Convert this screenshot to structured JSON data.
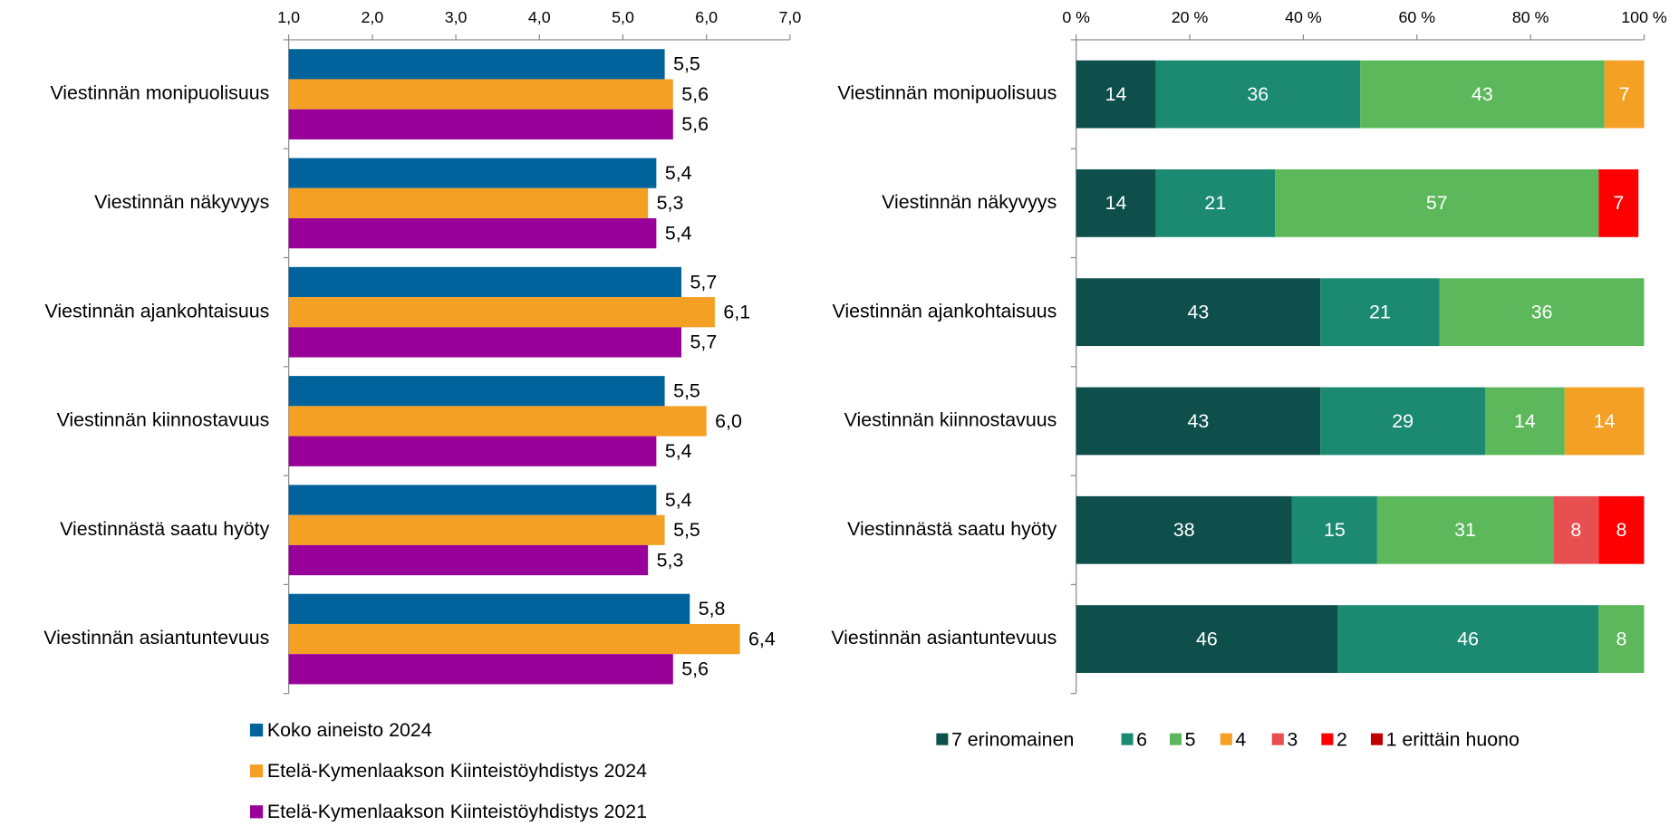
{
  "chart_data": [
    {
      "type": "bar",
      "orientation": "horizontal",
      "categories": [
        "Viestinnän monipuolisuus",
        "Viestinnän näkyvyys",
        "Viestinnän ajankohtaisuus",
        "Viestinnän kiinnostavuus",
        "Viestinnästä saatu hyöty",
        "Viestinnän asiantuntevuus"
      ],
      "series": [
        {
          "name": "Koko aineisto 2024",
          "color": "#00639c",
          "values": [
            5.5,
            5.4,
            5.7,
            5.5,
            5.4,
            5.8
          ],
          "value_labels": [
            "5,5",
            "5,4",
            "5,7",
            "5,5",
            "5,4",
            "5,8"
          ]
        },
        {
          "name": "Etelä-Kymenlaakson Kiinteistöyhdistys 2024",
          "color": "#f4a025",
          "values": [
            5.6,
            5.3,
            6.1,
            6.0,
            5.5,
            6.4
          ],
          "value_labels": [
            "5,6",
            "5,3",
            "6,1",
            "6,0",
            "5,5",
            "6,4"
          ]
        },
        {
          "name": "Etelä-Kymenlaakson Kiinteistöyhdistys 2021",
          "color": "#990099",
          "values": [
            5.6,
            5.4,
            5.7,
            5.4,
            5.3,
            5.6
          ],
          "value_labels": [
            "5,6",
            "5,4",
            "5,7",
            "5,4",
            "5,3",
            "5,6"
          ]
        }
      ],
      "xlim": [
        1,
        7
      ],
      "xticks": [
        {
          "value": 1,
          "label": "1,0"
        },
        {
          "value": 2,
          "label": "2,0"
        },
        {
          "value": 3,
          "label": "3,0"
        },
        {
          "value": 4,
          "label": "4,0"
        },
        {
          "value": 5,
          "label": "5,0"
        },
        {
          "value": 6,
          "label": "6,0"
        },
        {
          "value": 7,
          "label": "7,0"
        }
      ],
      "legend": "bottom"
    },
    {
      "type": "stacked_bar",
      "orientation": "horizontal",
      "categories": [
        "Viestinnän monipuolisuus",
        "Viestinnän näkyvyys",
        "Viestinnän ajankohtaisuus",
        "Viestinnän kiinnostavuus",
        "Viestinnästä saatu hyöty",
        "Viestinnän asiantuntevuus"
      ],
      "series": [
        {
          "name": "7 erinomainen",
          "color": "#0e4f4c",
          "values": [
            14,
            14,
            43,
            43,
            38,
            46
          ]
        },
        {
          "name": "6",
          "color": "#1b8a71",
          "values": [
            36,
            21,
            21,
            29,
            15,
            46
          ]
        },
        {
          "name": "5",
          "color": "#5cb85a",
          "values": [
            43,
            57,
            36,
            14,
            31,
            8
          ]
        },
        {
          "name": "4",
          "color": "#f4a025",
          "values": [
            7,
            null,
            null,
            14,
            null,
            null
          ]
        },
        {
          "name": "3",
          "color": "#e84f50",
          "values": [
            null,
            null,
            null,
            null,
            8,
            null
          ]
        },
        {
          "name": "2",
          "color": "#ff0000",
          "values": [
            null,
            7,
            null,
            null,
            8,
            null
          ]
        },
        {
          "name": "1 erittäin huono",
          "color": "#c00000",
          "values": [
            null,
            null,
            null,
            null,
            null,
            null
          ]
        }
      ],
      "xlim": [
        0,
        100
      ],
      "xticks": [
        {
          "value": 0,
          "label": "0 %"
        },
        {
          "value": 20,
          "label": "20 %"
        },
        {
          "value": 40,
          "label": "40 %"
        },
        {
          "value": 60,
          "label": "60 %"
        },
        {
          "value": 80,
          "label": "80 %"
        },
        {
          "value": 100,
          "label": "100 %"
        }
      ],
      "legend": "bottom"
    }
  ]
}
